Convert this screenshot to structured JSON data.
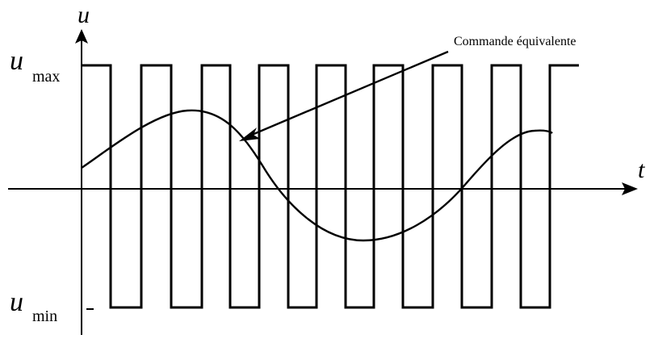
{
  "axes": {
    "y_symbol": "u",
    "x_symbol": "t",
    "umax_symbol": "u",
    "umax_sub": "max",
    "umin_symbol": "u",
    "umin_sub": "min"
  },
  "annotation": {
    "text": "Commande équivalente"
  },
  "colors": {
    "stroke": "#000000",
    "background": "#ffffff"
  }
}
